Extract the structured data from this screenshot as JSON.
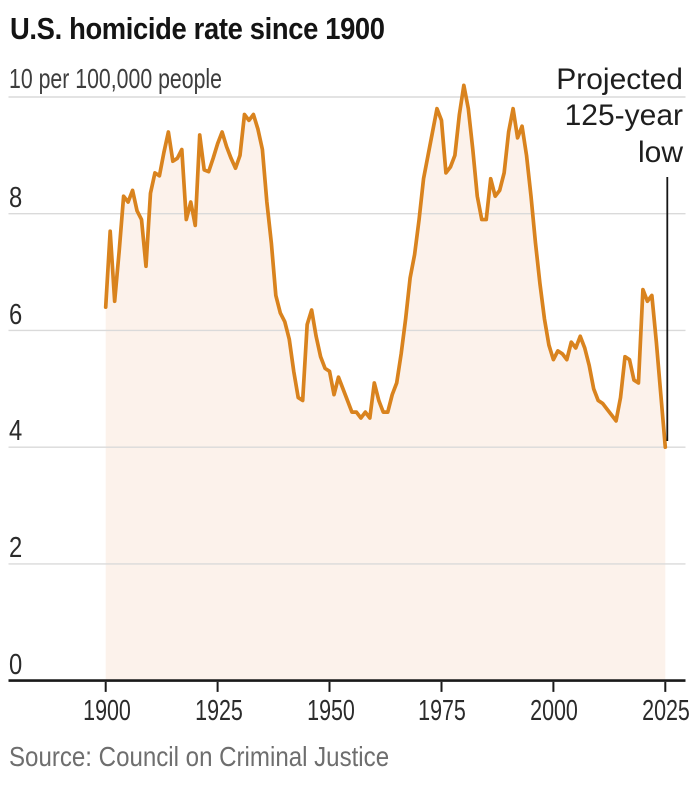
{
  "title": "U.S. homicide rate since 1900",
  "unit_label": "10 per 100,000 people",
  "annotation": {
    "text": "Projected 125-year low",
    "lines": [
      "Projected",
      "125-year",
      "low"
    ]
  },
  "source": "Source: Council on Criminal Justice",
  "colors": {
    "line": "#D9831E",
    "area_fill": "#FCF2EB",
    "gridline": "#DADADA",
    "axis": "#1A1A1A",
    "annotation_line": "#161616",
    "title_text": "#141414",
    "label_text": "#2B2B2B",
    "unit_text": "#3D3D3D",
    "source_text": "#6E6E6E",
    "background": "#FFFFFF"
  },
  "chart_data": {
    "type": "line",
    "title": "U.S. homicide rate since 1900",
    "xlabel": "",
    "ylabel": "10 per 100,000 people",
    "legend": null,
    "grid": "horizontal",
    "area_fill": true,
    "xlim": [
      1900,
      2025
    ],
    "ylim": [
      0,
      10
    ],
    "x_ticks": [
      1900,
      1925,
      1950,
      1975,
      2000,
      2025
    ],
    "y_ticks": [
      0,
      2,
      4,
      6,
      8
    ],
    "y_top_gridline": 10,
    "annotation": "Projected 125-year low",
    "x": [
      1900,
      1901,
      1902,
      1903,
      1904,
      1905,
      1906,
      1907,
      1908,
      1909,
      1910,
      1911,
      1912,
      1913,
      1914,
      1915,
      1916,
      1917,
      1918,
      1919,
      1920,
      1921,
      1922,
      1923,
      1924,
      1925,
      1926,
      1927,
      1928,
      1929,
      1930,
      1931,
      1932,
      1933,
      1934,
      1935,
      1936,
      1937,
      1938,
      1939,
      1940,
      1941,
      1942,
      1943,
      1944,
      1945,
      1946,
      1947,
      1948,
      1949,
      1950,
      1951,
      1952,
      1953,
      1954,
      1955,
      1956,
      1957,
      1958,
      1959,
      1960,
      1961,
      1962,
      1963,
      1964,
      1965,
      1966,
      1967,
      1968,
      1969,
      1970,
      1971,
      1972,
      1973,
      1974,
      1975,
      1976,
      1977,
      1978,
      1979,
      1980,
      1981,
      1982,
      1983,
      1984,
      1985,
      1986,
      1987,
      1988,
      1989,
      1990,
      1991,
      1992,
      1993,
      1994,
      1995,
      1996,
      1997,
      1998,
      1999,
      2000,
      2001,
      2002,
      2003,
      2004,
      2005,
      2006,
      2007,
      2008,
      2009,
      2010,
      2011,
      2012,
      2013,
      2014,
      2015,
      2016,
      2017,
      2018,
      2019,
      2020,
      2021,
      2022,
      2023,
      2024,
      2025
    ],
    "values": [
      6.4,
      7.7,
      6.5,
      7.35,
      8.3,
      8.2,
      8.4,
      8.05,
      7.9,
      7.1,
      8.35,
      8.7,
      8.65,
      9.05,
      9.4,
      8.9,
      8.95,
      9.1,
      7.9,
      8.2,
      7.8,
      9.35,
      8.75,
      8.72,
      8.95,
      9.2,
      9.4,
      9.15,
      8.95,
      8.78,
      9.0,
      9.7,
      9.6,
      9.7,
      9.45,
      9.1,
      8.2,
      7.5,
      6.6,
      6.3,
      6.15,
      5.85,
      5.3,
      4.85,
      4.8,
      6.1,
      6.35,
      5.9,
      5.55,
      5.35,
      5.3,
      4.9,
      5.2,
      5.0,
      4.8,
      4.6,
      4.6,
      4.5,
      4.6,
      4.5,
      5.1,
      4.8,
      4.6,
      4.6,
      4.9,
      5.1,
      5.6,
      6.2,
      6.9,
      7.3,
      7.9,
      8.6,
      9.0,
      9.4,
      9.8,
      9.6,
      8.7,
      8.8,
      9.0,
      9.7,
      10.2,
      9.8,
      9.1,
      8.3,
      7.9,
      7.9,
      8.6,
      8.3,
      8.4,
      8.7,
      9.4,
      9.8,
      9.3,
      9.5,
      9.0,
      8.3,
      7.5,
      6.8,
      6.2,
      5.75,
      5.5,
      5.65,
      5.6,
      5.5,
      5.8,
      5.7,
      5.9,
      5.7,
      5.4,
      5.0,
      4.8,
      4.75,
      4.65,
      4.55,
      4.45,
      4.85,
      5.55,
      5.5,
      5.15,
      5.1,
      6.7,
      6.5,
      6.6,
      5.8,
      4.9,
      4.0
    ]
  }
}
